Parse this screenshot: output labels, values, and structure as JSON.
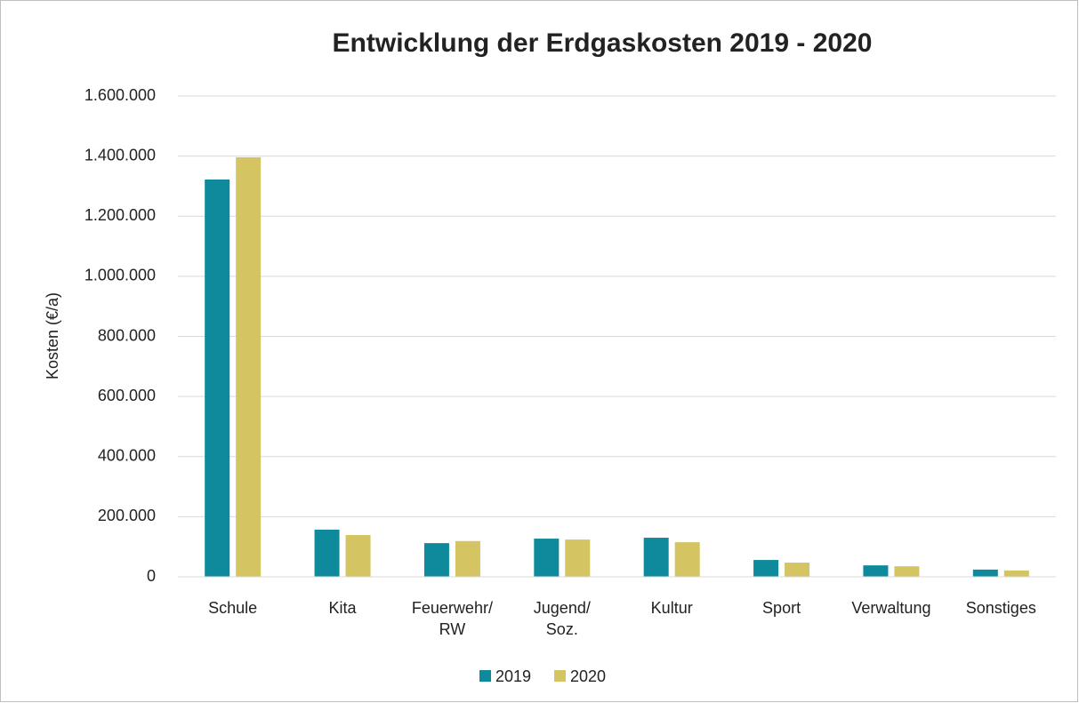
{
  "chart_data": {
    "type": "bar",
    "title": "Entwicklung der Erdgaskosten 2019 - 2020",
    "y_label": "Kosten (€/a)",
    "categories": [
      "Schule",
      "Kita",
      "Feuerwehr/ RW",
      "Jugend/ Soz.",
      "Kultur",
      "Sport",
      "Verwaltung",
      "Sonstiges"
    ],
    "series": [
      {
        "name": "2019",
        "color": "#0e8a9c",
        "values": [
          1322000,
          157000,
          112000,
          127000,
          130000,
          56000,
          38000,
          24000
        ]
      },
      {
        "name": "2020",
        "color": "#d4c462",
        "values": [
          1396000,
          139000,
          119000,
          124000,
          115000,
          47000,
          35000,
          21000
        ]
      }
    ],
    "ylim": [
      0,
      1600000
    ],
    "yticks": [
      0,
      {
        "value": 200000,
        "label": "200.000"
      },
      {
        "value": 400000,
        "label": "400.000"
      },
      {
        "value": 600000,
        "label": "600.000"
      },
      {
        "value": 800000,
        "label": "800.000"
      },
      {
        "value": 1000000,
        "label": "1.000.000"
      },
      {
        "value": 1200000,
        "label": "1.200.000"
      },
      {
        "value": 1400000,
        "label": "1.400.000"
      },
      {
        "value": 1600000,
        "label": "1.600.000"
      }
    ],
    "grid": true,
    "legend": "bottom"
  }
}
